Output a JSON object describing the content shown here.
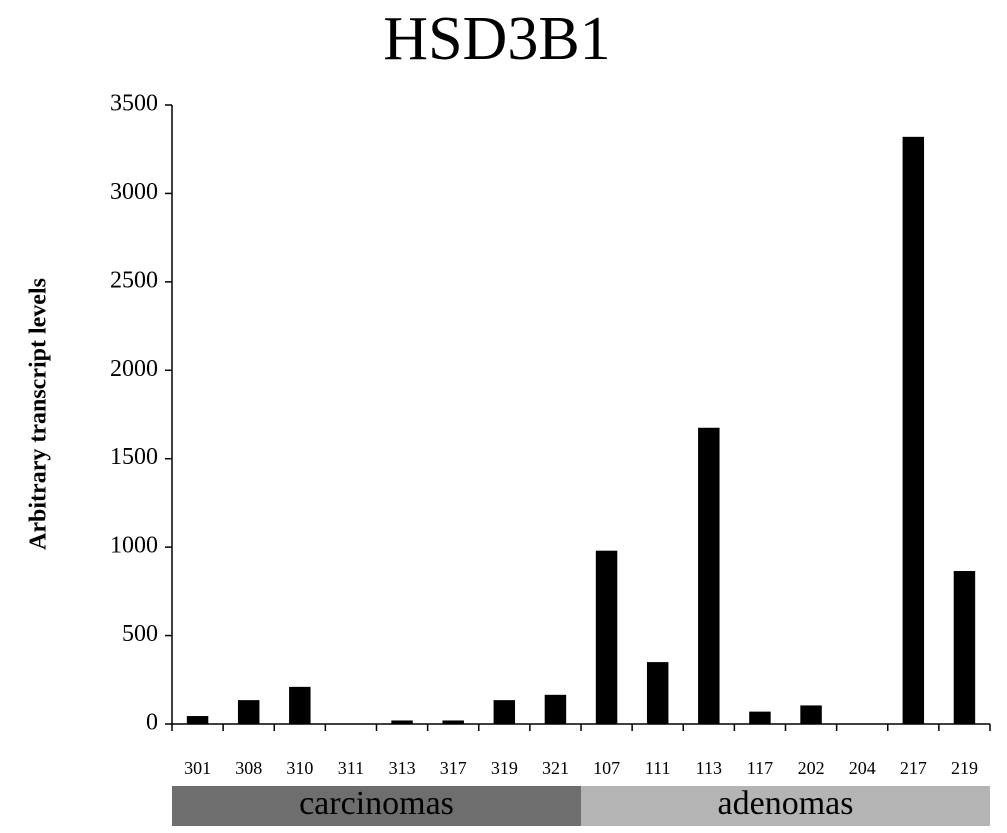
{
  "chart_data": {
    "type": "bar",
    "title": "HSD3B1",
    "y_label": "Arbitrary transcript levels",
    "groups": [
      {
        "name": "carcinomas",
        "color": "#6e6e6e",
        "categories": [
          "301",
          "308",
          "310",
          "311",
          "313",
          "317",
          "319",
          "321"
        ]
      },
      {
        "name": "adenomas",
        "color": "#b4b4b4",
        "categories": [
          "107",
          "111",
          "113",
          "117",
          "202",
          "204",
          "217",
          "219"
        ]
      }
    ],
    "values": [
      45,
      135,
      210,
      0,
      20,
      20,
      135,
      165,
      980,
      350,
      1675,
      70,
      105,
      0,
      3320,
      865
    ],
    "color": "#000000",
    "ylim": [
      0,
      3500
    ],
    "yticks": [
      0,
      500,
      1000,
      1500,
      2000,
      2500,
      3000,
      3500
    ],
    "grid": false
  }
}
